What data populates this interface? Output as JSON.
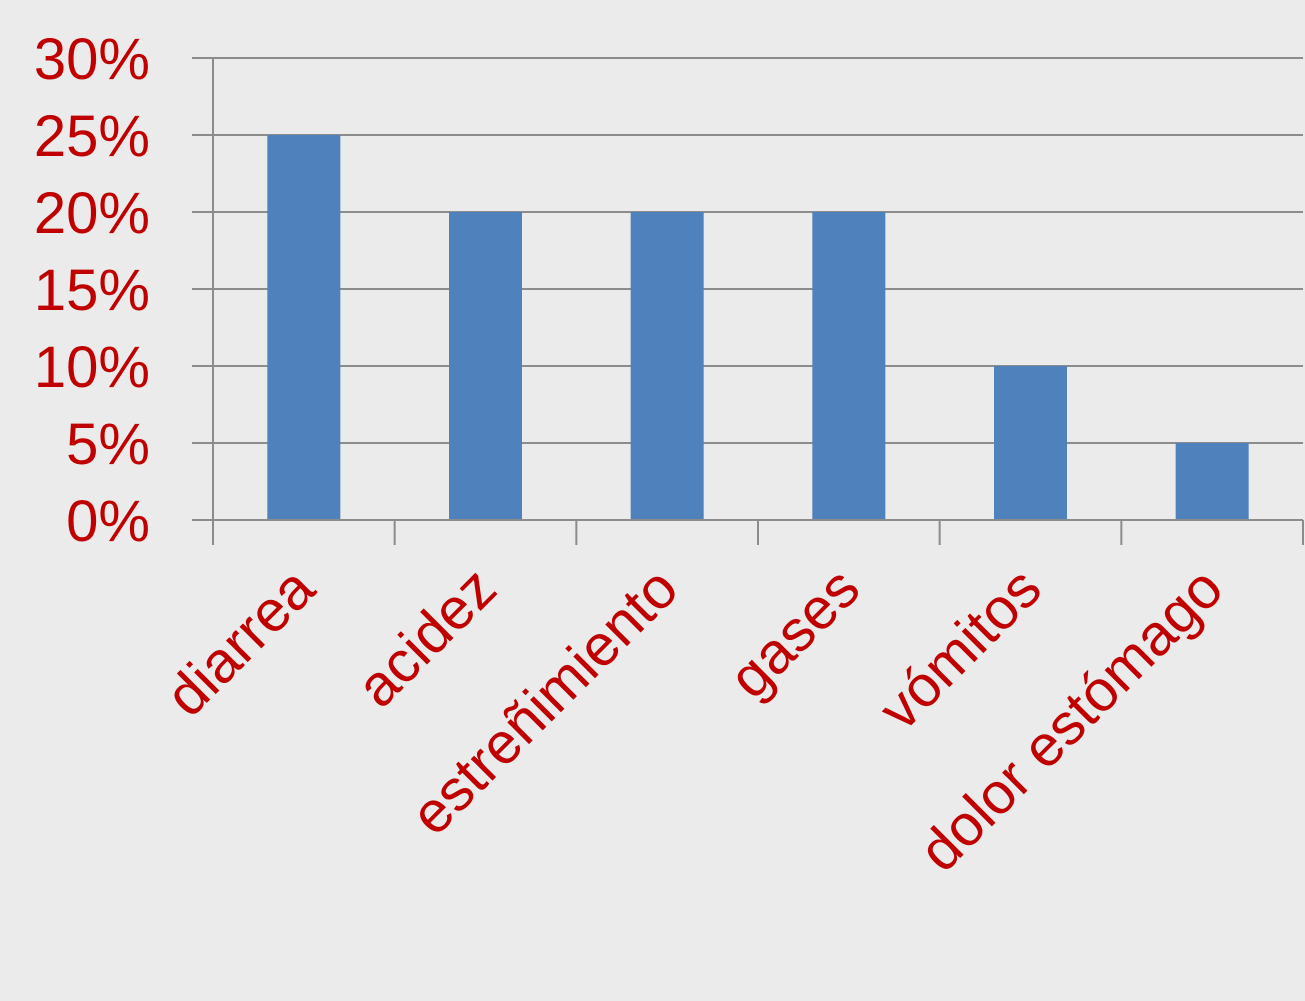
{
  "chart_data": {
    "type": "bar",
    "categories": [
      "diarrea",
      "acidez",
      "estreñimiento",
      "gases",
      "vómitos",
      "dolor estómago"
    ],
    "values": [
      25,
      20,
      20,
      20,
      10,
      5
    ],
    "value_format": "percent",
    "ylim": [
      0,
      30
    ],
    "y_ticks": [
      "0%",
      "5%",
      "10%",
      "15%",
      "20%",
      "25%",
      "30%"
    ],
    "title": "",
    "xlabel": "",
    "ylabel": "",
    "grid": true,
    "legend": "none",
    "colors": {
      "bar": "#4f81bd",
      "label": "#c00000",
      "grid": "#8c8c8c",
      "background": "#ebebeb"
    }
  }
}
